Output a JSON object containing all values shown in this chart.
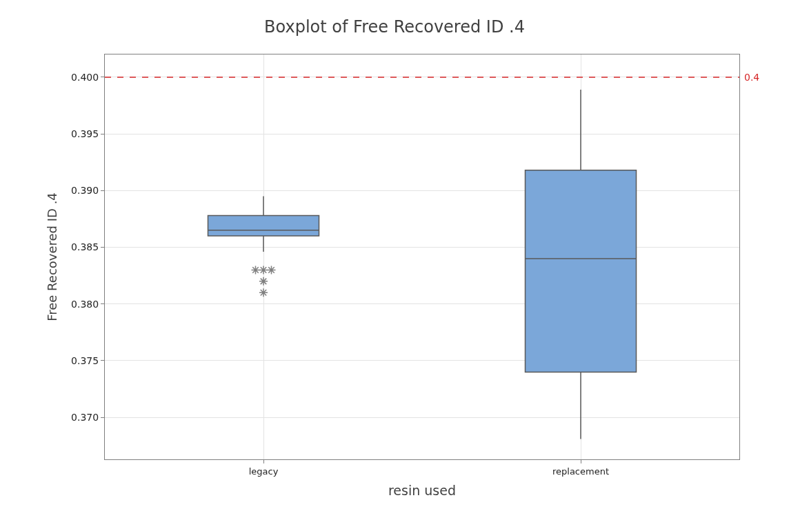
{
  "chart_data": {
    "type": "box",
    "title": "Boxplot of Free Recovered ID .4",
    "xlabel": "resin used",
    "ylabel": "Free Recovered ID .4",
    "categories": [
      "legacy",
      "replacement"
    ],
    "boxes": [
      {
        "low": 0.3846,
        "q1": 0.386,
        "median": 0.3865,
        "q3": 0.3878,
        "high": 0.3895,
        "outliers": [
          0.383,
          0.383,
          0.383,
          0.382,
          0.381
        ]
      },
      {
        "low": 0.3681,
        "q1": 0.374,
        "median": 0.384,
        "q3": 0.3918,
        "high": 0.3989
      }
    ],
    "color": "#7ba7d9",
    "ylim": [
      0.3663,
      0.402
    ],
    "yticks": [
      {
        "value": 0.37,
        "label": "0.370"
      },
      {
        "value": 0.375,
        "label": "0.375"
      },
      {
        "value": 0.38,
        "label": "0.380"
      },
      {
        "value": 0.385,
        "label": "0.385"
      },
      {
        "value": 0.39,
        "label": "0.390"
      },
      {
        "value": 0.395,
        "label": "0.395"
      },
      {
        "value": 0.4,
        "label": "0.400"
      }
    ],
    "ref_lines": [
      {
        "axis": "y",
        "value": 0.4,
        "label": "0.4",
        "color": "#d62728",
        "line_style": "dashed"
      }
    ],
    "grid": true,
    "marker": "star"
  }
}
